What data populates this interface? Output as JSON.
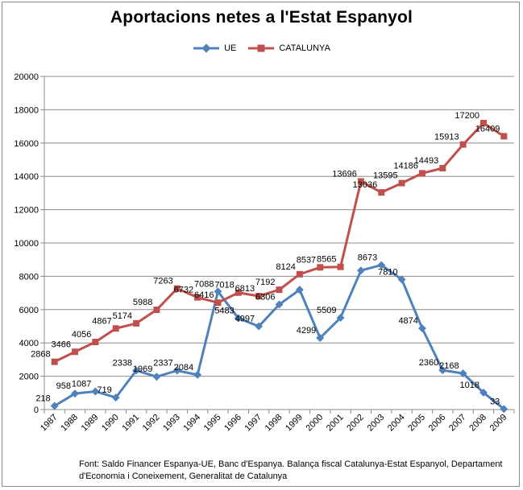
{
  "chart_data": {
    "type": "line",
    "title": "Aportacions netes a l'Estat Espanyol",
    "xlabel": "",
    "ylabel": "",
    "categories": [
      "1987",
      "1988",
      "1989",
      "1990",
      "1991",
      "1992",
      "1993",
      "1994",
      "1995",
      "1996",
      "1997",
      "1998",
      "1999",
      "2000",
      "2001",
      "2002",
      "2003",
      "2004",
      "2005",
      "2006",
      "2007",
      "2008",
      "2009"
    ],
    "ylim": [
      0,
      20000
    ],
    "yticks": [
      "0",
      "2000",
      "4000",
      "6000",
      "8000",
      "10000",
      "12000",
      "14000",
      "16000",
      "18000",
      "20000"
    ],
    "grid": true,
    "legend_position": "top",
    "series": [
      {
        "name": "UE",
        "color": "#4f81bd",
        "marker": "diamond",
        "values": [
          218,
          958,
          1087,
          719,
          2338,
          1969,
          2337,
          2084,
          7088,
          5483,
          4997,
          6306,
          7192,
          4299,
          5509,
          8347,
          8673,
          7810,
          4874,
          2360,
          2168,
          1018,
          33
        ],
        "labels": [
          "218",
          "958",
          "1087",
          "719",
          "2338",
          "1969",
          "2337",
          "2084",
          "7088",
          "5483",
          "4997",
          "6306",
          "",
          "4299",
          "5509",
          "",
          "8673",
          "7810",
          "4874",
          "2360",
          "2168",
          "1018",
          "33"
        ]
      },
      {
        "name": "CATALUNYA",
        "color": "#c0504d",
        "marker": "square",
        "values": [
          2868,
          3466,
          4056,
          4867,
          5174,
          5988,
          7263,
          6732,
          6416,
          7018,
          6813,
          7192,
          8124,
          8537,
          8565,
          13696,
          13036,
          13595,
          14186,
          14493,
          15913,
          17200,
          16409
        ],
        "labels": [
          "2868",
          "3466",
          "4056",
          "4867",
          "5174",
          "5988",
          "7263",
          "6732",
          "6416",
          "7018",
          "6813",
          "7192",
          "8124",
          "8537",
          "8565",
          "13696",
          "13036",
          "13595",
          "14186",
          "14493",
          "15913",
          "17200",
          "16409"
        ]
      }
    ]
  },
  "source_text": "Font: Saldo Financer Espanya-UE, Banc d'Espanya. Balança fiscal Catalunya-Estat Espanyol, Departament d'Economia i Coneixement, Generalitat de Catalunya"
}
